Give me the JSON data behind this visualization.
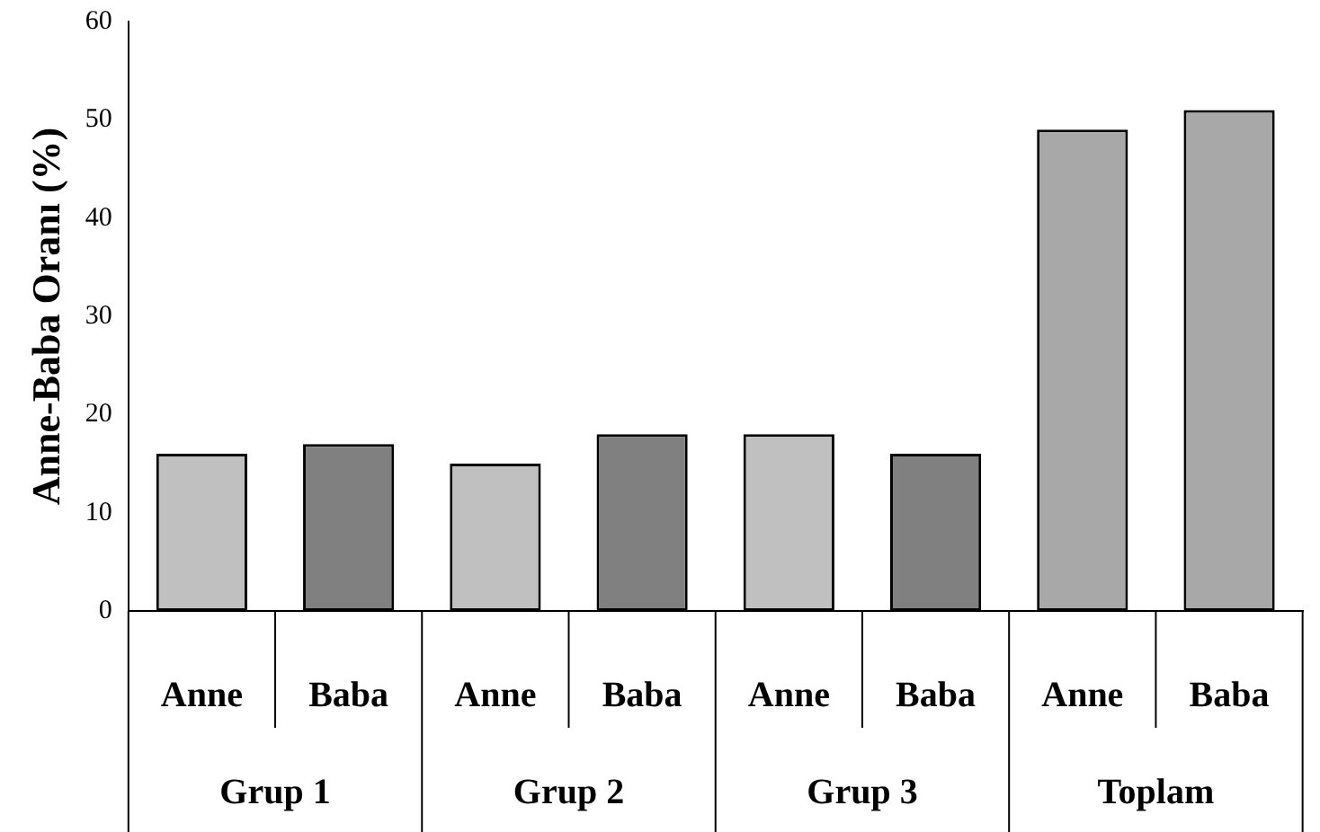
{
  "chart_data": {
    "type": "bar",
    "ylabel": "Anne-Baba Oranı (%)",
    "categories": [
      "Anne",
      "Baba",
      "Anne",
      "Baba",
      "Anne",
      "Baba",
      "Anne",
      "Baba"
    ],
    "values": [
      16,
      17,
      15,
      18,
      18,
      16,
      49,
      51
    ],
    "colors": [
      "#c0c0c0",
      "#808080",
      "#c0c0c0",
      "#808080",
      "#c0c0c0",
      "#808080",
      "#a8a8a8",
      "#a8a8a8"
    ],
    "ylim": [
      0,
      60
    ],
    "yticks": [
      0,
      10,
      20,
      30,
      40,
      50,
      60
    ],
    "grid": false,
    "legend": false,
    "annotations": [
      "Grup 1",
      "Grup 2",
      "Grup 3",
      "Toplam"
    ]
  }
}
